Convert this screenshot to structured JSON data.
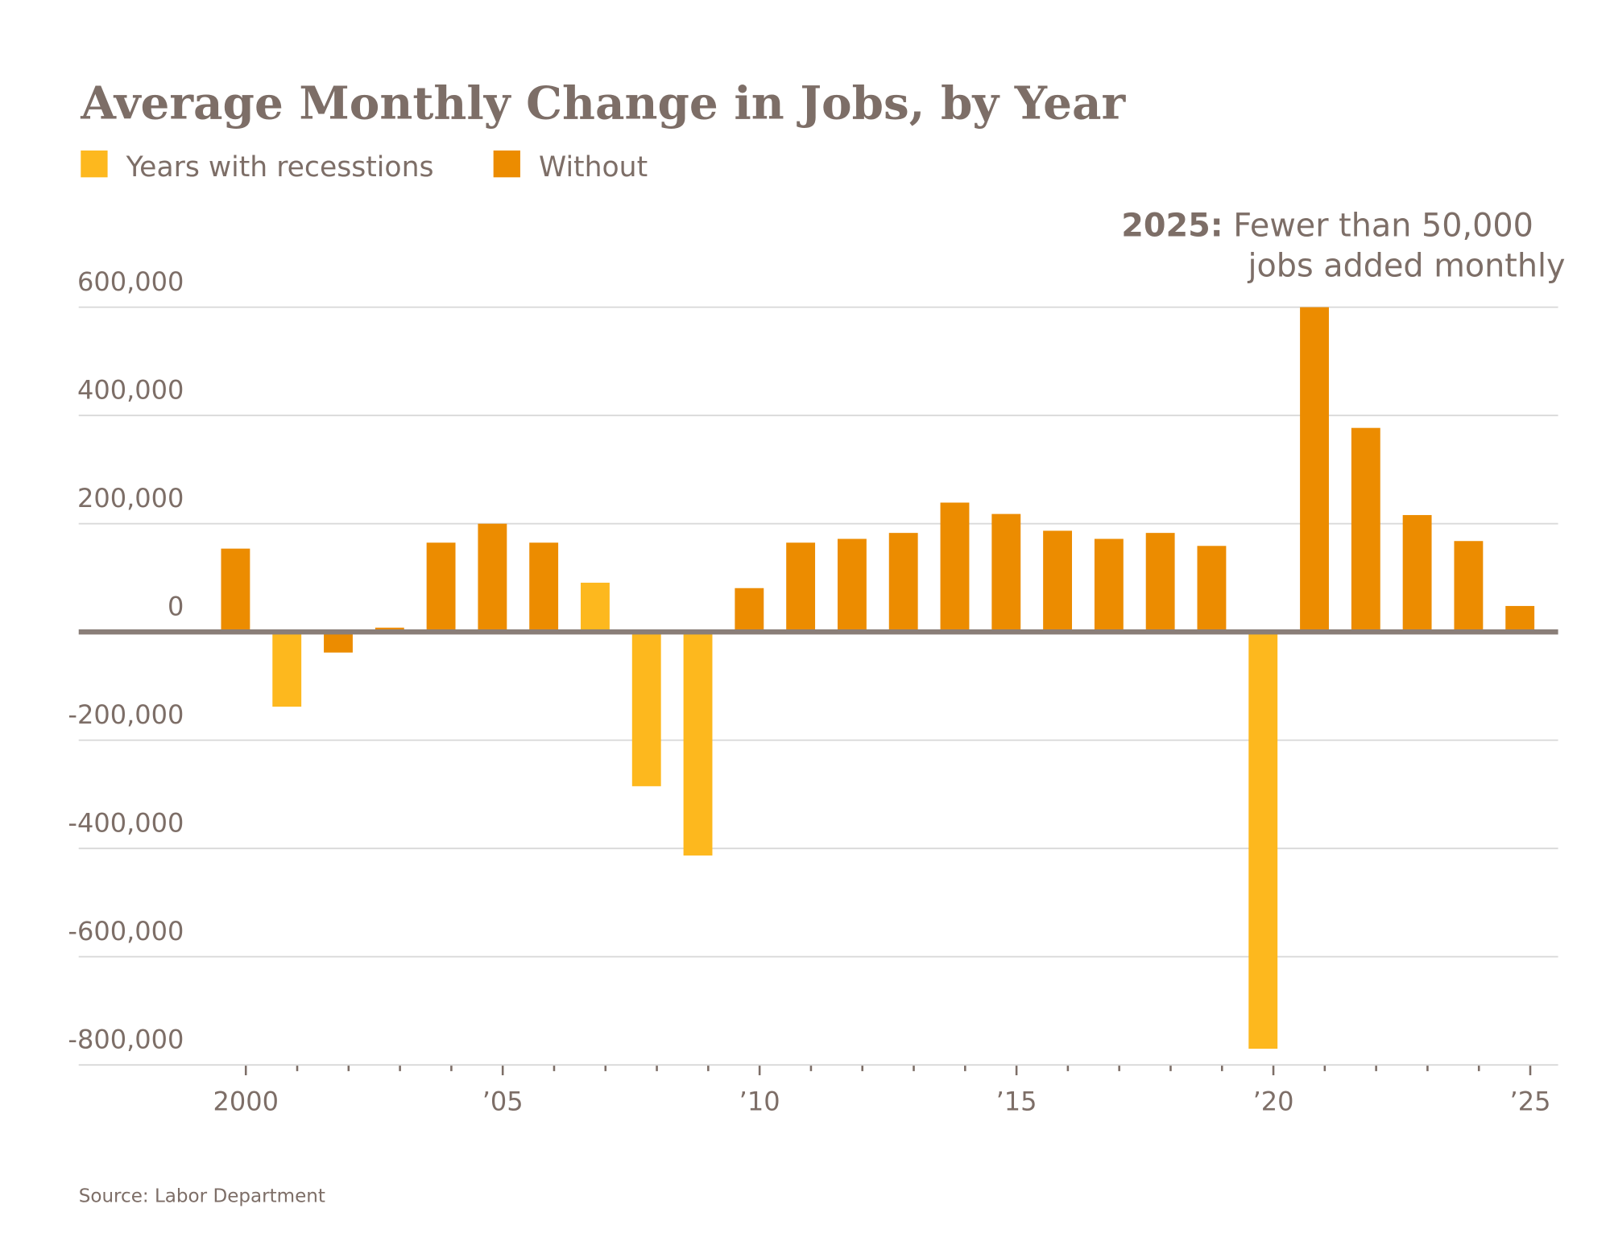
{
  "chart_data": {
    "type": "bar",
    "title": "Average Monthly Change in Jobs, by Year",
    "source": "Source: Labor Department",
    "legend": [
      {
        "label": "Years with recesstions",
        "color": "#fdb81e"
      },
      {
        "label": "Without",
        "color": "#ec8c00"
      }
    ],
    "legend_placement": "top-left",
    "annotation": {
      "bold": "2025:",
      "line1": "Fewer than 50,000",
      "line2": "jobs added monthly"
    },
    "ylim": [
      -800000,
      600000
    ],
    "yticks": [
      600000,
      400000,
      200000,
      0,
      -200000,
      -400000,
      -600000,
      -800000
    ],
    "ytick_labels": [
      "600,000",
      "400,000",
      "200,000",
      "0",
      "-200,000",
      "-400,000",
      "-600,000",
      "-800,000"
    ],
    "xtick_labels": [
      {
        "year": 2000,
        "label": "2000"
      },
      {
        "year": 2005,
        "label": "’05"
      },
      {
        "year": 2010,
        "label": "’10"
      },
      {
        "year": 2015,
        "label": "’15"
      },
      {
        "year": 2020,
        "label": "’20"
      },
      {
        "year": 2025,
        "label": "’25"
      }
    ],
    "grid": true,
    "categories": [
      2000,
      2001,
      2002,
      2003,
      2004,
      2005,
      2006,
      2007,
      2008,
      2009,
      2010,
      2011,
      2012,
      2013,
      2014,
      2015,
      2016,
      2017,
      2018,
      2019,
      2020,
      2021,
      2022,
      2023,
      2024,
      2025
    ],
    "values": [
      154000,
      -138000,
      -38000,
      8000,
      165000,
      200000,
      165000,
      91000,
      -285000,
      -413000,
      81000,
      165000,
      172000,
      183000,
      239000,
      218000,
      187000,
      172000,
      183000,
      159000,
      -770000,
      600000,
      377000,
      216000,
      168000,
      48000
    ],
    "recession": [
      false,
      true,
      false,
      false,
      false,
      false,
      false,
      true,
      true,
      true,
      false,
      false,
      false,
      false,
      false,
      false,
      false,
      false,
      false,
      false,
      true,
      false,
      false,
      false,
      false,
      false
    ],
    "colors": {
      "recession": "#fdb81e",
      "without": "#ec8c00",
      "text": "#7d6e67",
      "zero_line": "#8a7e78",
      "grid": "#d9d9d9"
    }
  }
}
